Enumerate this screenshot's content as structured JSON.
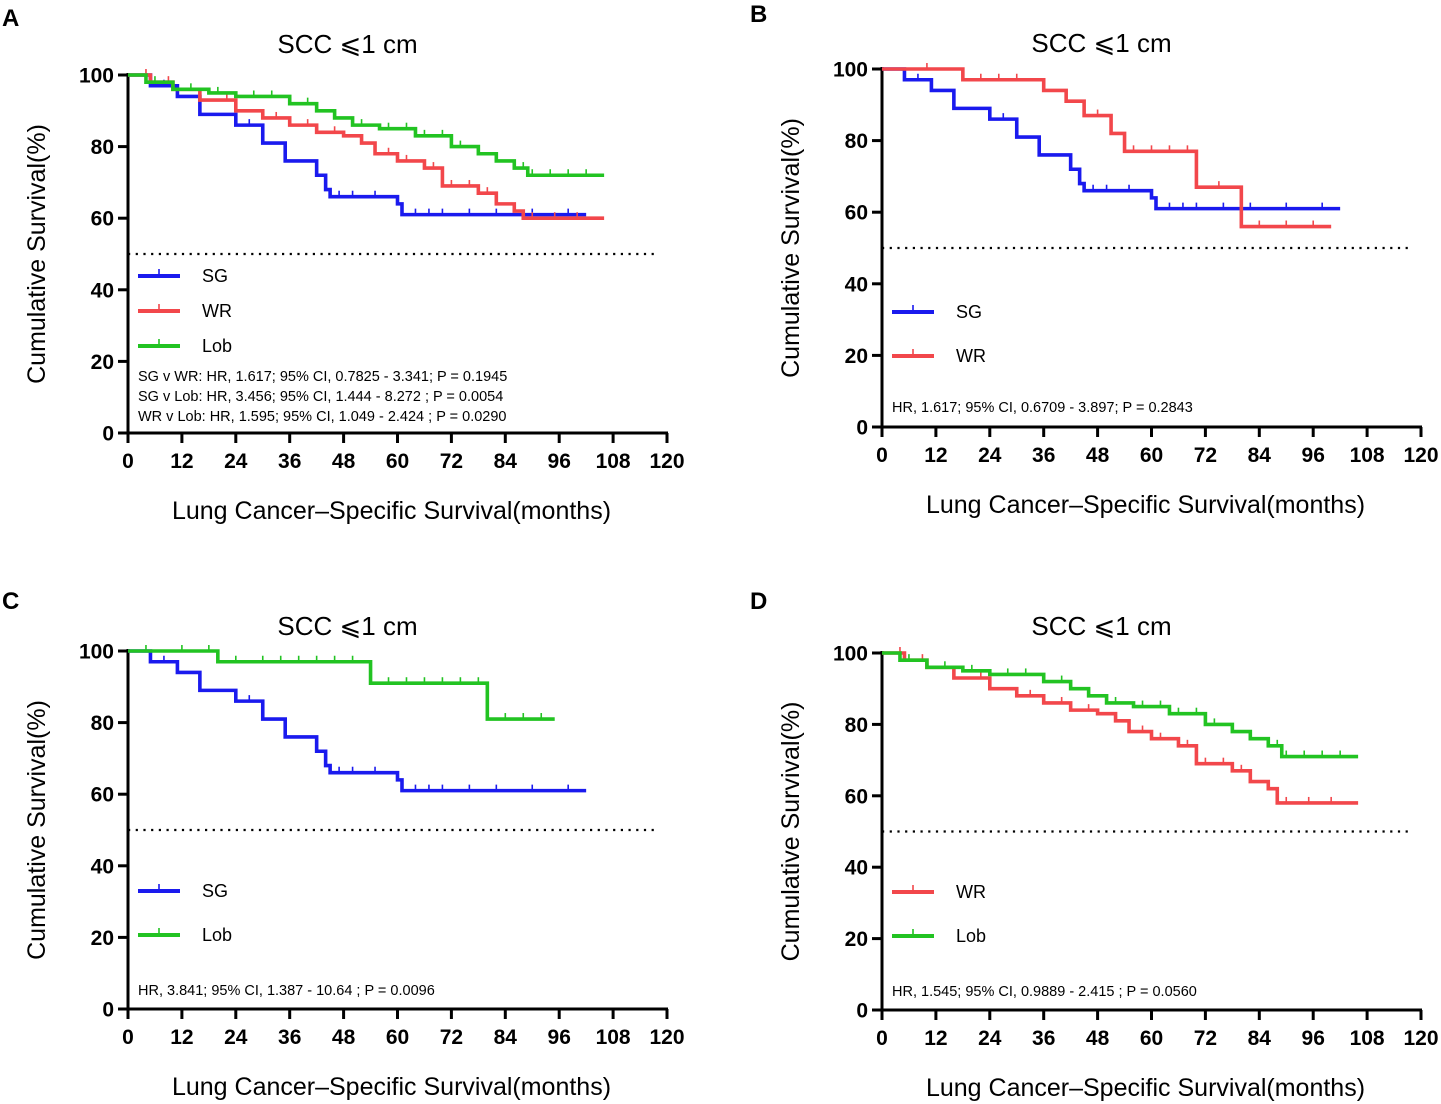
{
  "colors": {
    "SG": "#1a1aee",
    "WR": "#f2474b",
    "Lob": "#22c322",
    "axis": "#000000",
    "reference": "#000000"
  },
  "chart_data": [
    {
      "panel": "A",
      "type": "line",
      "title": "SCC ⩽1 cm",
      "xlabel": "Lung Cancer–Specific Survival(months)",
      "ylabel": "Cumulative Survival(%)",
      "xlim": [
        0,
        120
      ],
      "ylim": [
        0,
        100
      ],
      "xticks": [
        "0",
        "12",
        "24",
        "36",
        "48",
        "60",
        "72",
        "84",
        "96",
        "108",
        "120"
      ],
      "yticks": [
        "0",
        "20",
        "40",
        "60",
        "80",
        "100"
      ],
      "reference_line": 50,
      "series": [
        {
          "name": "SG",
          "color_key": "SG",
          "x": [
            0,
            5,
            11,
            16,
            24,
            30,
            35,
            42,
            44,
            45,
            60,
            61,
            102
          ],
          "y": [
            100,
            97,
            94,
            89,
            86,
            81,
            76,
            72,
            68,
            66,
            64,
            61,
            61
          ],
          "censor": [
            8,
            27,
            47,
            50,
            55,
            64,
            67,
            70,
            76,
            82,
            90,
            98
          ]
        },
        {
          "name": "WR",
          "color_key": "WR",
          "x": [
            0,
            5,
            10,
            16,
            24,
            30,
            36,
            42,
            48,
            52,
            55,
            60,
            66,
            70,
            78,
            82,
            86,
            88,
            106
          ],
          "y": [
            100,
            98,
            96,
            93,
            90,
            88,
            86,
            84,
            83,
            81,
            78,
            76,
            74,
            69,
            67,
            64,
            62,
            60,
            60
          ],
          "censor": [
            4,
            9,
            22,
            33,
            40,
            46,
            58,
            62,
            68,
            72,
            76,
            80,
            90,
            95,
            100
          ]
        },
        {
          "name": "Lob",
          "color_key": "Lob",
          "x": [
            0,
            4,
            10,
            18,
            24,
            36,
            42,
            46,
            50,
            56,
            64,
            72,
            78,
            82,
            86,
            89,
            106
          ],
          "y": [
            100,
            98,
            96,
            95,
            94,
            92,
            90,
            88,
            86,
            85,
            83,
            80,
            78,
            76,
            74,
            72,
            72
          ],
          "censor": [
            6,
            14,
            20,
            28,
            32,
            40,
            52,
            58,
            62,
            66,
            70,
            74,
            82,
            88,
            90,
            94,
            98,
            102
          ]
        }
      ],
      "legend": [
        "SG",
        "WR",
        "Lob"
      ],
      "annotations": [
        "SG v WR: HR, 1.617; 95% CI, 0.7825  - 3.341; P = 0.1945",
        "SG v Lob: HR, 3.456; 95% CI, 1.444  - 8.272 ; P = 0.0054",
        "WR v Lob: HR, 1.595; 95% CI, 1.049  - 2.424 ; P = 0.0290"
      ]
    },
    {
      "panel": "B",
      "type": "line",
      "title": "SCC ⩽1 cm",
      "xlabel": "Lung Cancer–Specific Survival(months)",
      "ylabel": "Cumulative Survival(%)",
      "xlim": [
        0,
        120
      ],
      "ylim": [
        0,
        100
      ],
      "xticks": [
        "0",
        "12",
        "24",
        "36",
        "48",
        "60",
        "72",
        "84",
        "96",
        "108",
        "120"
      ],
      "yticks": [
        "0",
        "20",
        "40",
        "60",
        "80",
        "100"
      ],
      "reference_line": 50,
      "series": [
        {
          "name": "SG",
          "color_key": "SG",
          "x": [
            0,
            5,
            11,
            16,
            24,
            30,
            35,
            42,
            44,
            45,
            60,
            61,
            102
          ],
          "y": [
            100,
            97,
            94,
            89,
            86,
            81,
            76,
            72,
            68,
            66,
            64,
            61,
            61
          ],
          "censor": [
            8,
            27,
            47,
            50,
            55,
            64,
            67,
            70,
            76,
            82,
            90,
            98
          ]
        },
        {
          "name": "WR",
          "color_key": "WR",
          "x": [
            0,
            18,
            36,
            41,
            45,
            51,
            54,
            70,
            78,
            80,
            100
          ],
          "y": [
            100,
            97,
            94,
            91,
            87,
            82,
            77,
            67,
            67,
            56,
            56
          ],
          "censor": [
            10,
            22,
            26,
            30,
            48,
            56,
            60,
            64,
            68,
            75,
            84,
            90,
            96
          ]
        }
      ],
      "legend": [
        "SG",
        "WR"
      ],
      "annotations": [
        "HR, 1.617; 95% CI, 0.6709  - 3.897; P = 0.2843"
      ]
    },
    {
      "panel": "C",
      "type": "line",
      "title": "SCC ⩽1 cm",
      "xlabel": "Lung Cancer–Specific Survival(months)",
      "ylabel": "Cumulative Survival(%)",
      "xlim": [
        0,
        120
      ],
      "ylim": [
        0,
        100
      ],
      "xticks": [
        "0",
        "12",
        "24",
        "36",
        "48",
        "60",
        "72",
        "84",
        "96",
        "108",
        "120"
      ],
      "yticks": [
        "0",
        "20",
        "40",
        "60",
        "80",
        "100"
      ],
      "reference_line": 50,
      "series": [
        {
          "name": "SG",
          "color_key": "SG",
          "x": [
            0,
            5,
            11,
            16,
            24,
            30,
            35,
            42,
            44,
            45,
            60,
            61,
            102
          ],
          "y": [
            100,
            97,
            94,
            89,
            86,
            81,
            76,
            72,
            68,
            66,
            64,
            61,
            61
          ],
          "censor": [
            8,
            27,
            47,
            50,
            55,
            64,
            67,
            70,
            76,
            82,
            90,
            98
          ]
        },
        {
          "name": "Lob",
          "color_key": "Lob",
          "x": [
            0,
            20,
            54,
            80,
            95
          ],
          "y": [
            100,
            97,
            91,
            81,
            81
          ],
          "censor": [
            4,
            12,
            18,
            24,
            30,
            34,
            38,
            42,
            46,
            50,
            58,
            62,
            66,
            70,
            74,
            78,
            84,
            88,
            92
          ]
        }
      ],
      "legend": [
        "SG",
        "Lob"
      ],
      "annotations": [
        "HR, 3.841; 95% CI, 1.387  - 10.64 ; P = 0.0096"
      ]
    },
    {
      "panel": "D",
      "type": "line",
      "title": "SCC ⩽1 cm",
      "xlabel": "Lung Cancer–Specific Survival(months)",
      "ylabel": "Cumulative Survival(%)",
      "xlim": [
        0,
        120
      ],
      "ylim": [
        0,
        100
      ],
      "xticks": [
        "0",
        "12",
        "24",
        "36",
        "48",
        "60",
        "72",
        "84",
        "96",
        "108",
        "120"
      ],
      "yticks": [
        "0",
        "20",
        "40",
        "60",
        "80",
        "100"
      ],
      "reference_line": 50,
      "series": [
        {
          "name": "WR",
          "color_key": "WR",
          "x": [
            0,
            5,
            10,
            16,
            24,
            30,
            36,
            42,
            48,
            52,
            55,
            60,
            66,
            70,
            78,
            82,
            86,
            88,
            106
          ],
          "y": [
            100,
            98,
            96,
            93,
            90,
            88,
            86,
            84,
            83,
            81,
            78,
            76,
            74,
            69,
            67,
            64,
            62,
            58,
            58
          ],
          "censor": [
            4,
            9,
            22,
            33,
            40,
            46,
            58,
            62,
            68,
            72,
            76,
            80,
            90,
            95,
            100
          ]
        },
        {
          "name": "Lob",
          "color_key": "Lob",
          "x": [
            0,
            4,
            10,
            18,
            24,
            36,
            42,
            46,
            50,
            56,
            64,
            72,
            78,
            82,
            86,
            89,
            106
          ],
          "y": [
            100,
            98,
            96,
            95,
            94,
            92,
            90,
            88,
            86,
            85,
            83,
            80,
            78,
            76,
            74,
            71,
            71
          ],
          "censor": [
            6,
            14,
            20,
            28,
            32,
            40,
            52,
            58,
            62,
            66,
            70,
            74,
            82,
            88,
            90,
            94,
            98,
            102
          ]
        }
      ],
      "legend": [
        "WR",
        "Lob"
      ],
      "annotations": [
        "HR, 1.545; 95% CI, 0.9889  - 2.415 ; P = 0.0560"
      ]
    }
  ]
}
